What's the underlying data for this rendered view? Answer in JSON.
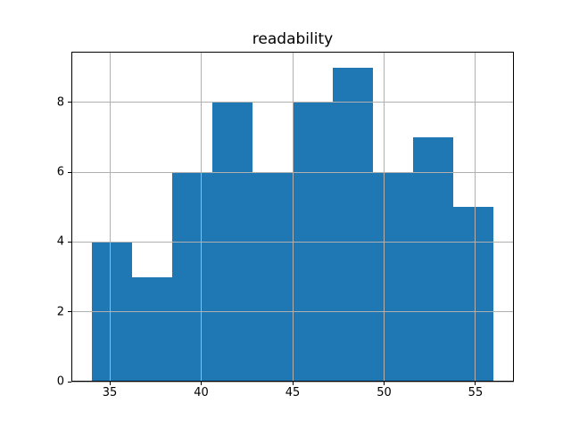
{
  "chart_data": {
    "type": "bar",
    "subtype": "histogram",
    "title": "readability",
    "xlabel": "",
    "ylabel": "",
    "bin_edges": [
      34.0,
      36.2,
      38.4,
      40.6,
      42.8,
      45.0,
      47.2,
      49.4,
      51.6,
      53.8,
      56.0
    ],
    "counts": [
      4,
      3,
      6,
      8,
      6,
      8,
      9,
      6,
      7,
      5
    ],
    "xticks": [
      35,
      40,
      45,
      50,
      55
    ],
    "xtick_labels": [
      "35",
      "40",
      "45",
      "50",
      "55"
    ],
    "yticks": [
      0,
      2,
      4,
      6,
      8
    ],
    "ytick_labels": [
      "0",
      "2",
      "4",
      "6",
      "8"
    ],
    "xlim": [
      32.9,
      57.1
    ],
    "ylim": [
      0,
      9.45
    ],
    "grid": true,
    "legend_position": "none",
    "colors": {
      "bar_fill": "#1f77b4",
      "grid_line": "#b0b0b0",
      "axis_frame": "#000000",
      "background": "#ffffff",
      "text": "#000000"
    }
  }
}
